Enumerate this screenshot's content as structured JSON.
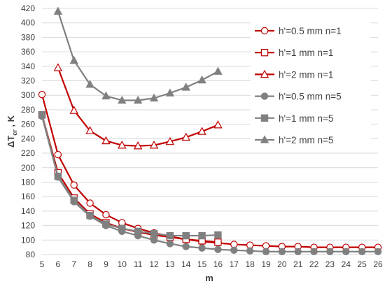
{
  "chart_data": {
    "type": "line",
    "xlabel": "m",
    "ylabel_main": "ΔT",
    "ylabel_sub": "cr",
    "ylabel_suffix": " , K",
    "xlim": [
      5,
      26
    ],
    "ylim": [
      80,
      420
    ],
    "x_ticks": [
      5,
      6,
      7,
      8,
      9,
      10,
      11,
      12,
      13,
      14,
      15,
      16,
      17,
      18,
      19,
      20,
      21,
      22,
      23,
      24,
      25,
      26
    ],
    "y_ticks": [
      80,
      100,
      120,
      140,
      160,
      180,
      200,
      220,
      240,
      260,
      280,
      300,
      320,
      340,
      360,
      380,
      400,
      420
    ],
    "grid": "horizontal",
    "legend_position": "right",
    "series": [
      {
        "name": "h'=0.5 mm n=1",
        "color": "#c00000",
        "marker": "circle-open",
        "x": [
          5,
          6,
          7,
          8,
          9,
          10,
          11,
          12,
          13,
          14,
          15,
          16,
          17,
          18,
          19,
          20,
          21,
          22,
          23,
          24,
          25,
          26
        ],
        "values": [
          301,
          218,
          176,
          151,
          135,
          124,
          116,
          110,
          105,
          101,
          98,
          96,
          94,
          93,
          92,
          91,
          91,
          90,
          90,
          90,
          90,
          90
        ]
      },
      {
        "name": "h'=1 mm n=1",
        "color": "#c00000",
        "marker": "square-open",
        "x": [
          5,
          6,
          7,
          8,
          9,
          10,
          11,
          12,
          13,
          14,
          15,
          16
        ],
        "values": [
          273,
          193,
          158,
          136,
          124,
          116,
          111,
          107,
          104,
          101,
          99,
          97
        ]
      },
      {
        "name": "h'=2 mm n=1",
        "color": "#c00000",
        "marker": "triangle-open",
        "x": [
          6,
          7,
          8,
          9,
          10,
          11,
          12,
          13,
          14,
          15,
          16
        ],
        "values": [
          338,
          279,
          251,
          237,
          231,
          230,
          231,
          236,
          242,
          250,
          259
        ]
      },
      {
        "name": "h'=0.5 mm n=5",
        "color": "#808080",
        "marker": "circle-filled",
        "x": [
          5,
          6,
          7,
          8,
          9,
          10,
          11,
          12,
          13,
          14,
          15,
          16,
          17,
          18,
          19,
          20,
          21,
          22,
          23,
          24,
          25,
          26
        ],
        "values": [
          271,
          187,
          153,
          133,
          120,
          112,
          106,
          100,
          95,
          91,
          89,
          87,
          86,
          85,
          84,
          84,
          84,
          84,
          84,
          84,
          84,
          84
        ]
      },
      {
        "name": "h'=1 mm n=5",
        "color": "#808080",
        "marker": "square-filled",
        "x": [
          5,
          6,
          7,
          8,
          9,
          10,
          11,
          12,
          13,
          14,
          15,
          16
        ],
        "values": [
          273,
          188,
          155,
          134,
          122,
          116,
          112,
          109,
          106,
          106,
          106,
          107
        ]
      },
      {
        "name": "h'=2 mm n=5",
        "color": "#808080",
        "marker": "triangle-filled",
        "x": [
          6,
          7,
          8,
          9,
          10,
          11,
          12,
          13,
          14,
          15,
          16
        ],
        "values": [
          416,
          348,
          315,
          299,
          293,
          293,
          296,
          303,
          311,
          321,
          333
        ]
      }
    ]
  }
}
